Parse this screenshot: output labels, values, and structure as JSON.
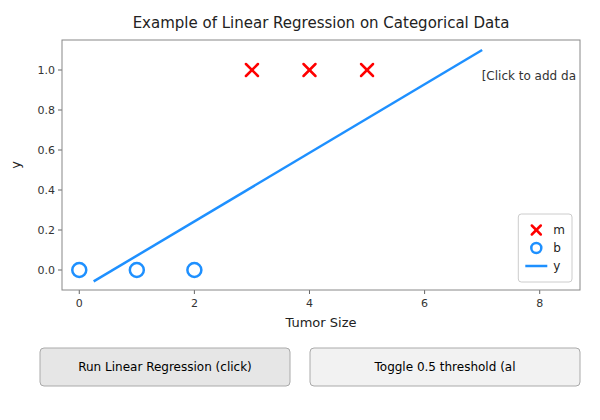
{
  "chart_data": {
    "type": "scatter",
    "title": "Example of Linear Regression on Categorical Data",
    "x_label": "Tumor Size",
    "y_label": "y",
    "xlim": [
      -0.3,
      8.7
    ],
    "ylim": [
      -0.1,
      1.15
    ],
    "xticks": [
      0,
      2,
      4,
      6,
      8
    ],
    "yticks": [
      {
        "value": 0.0,
        "label": "0.0"
      },
      0.2,
      0.4,
      0.6,
      0.8,
      {
        "value": 1.0,
        "label": "1.0"
      }
    ],
    "grid": false,
    "legend": "lower right",
    "series": [
      {
        "name": "m",
        "type": "scatter",
        "marker": "x",
        "color": "#ff0000",
        "x": [
          3.0,
          4.0,
          5.0
        ],
        "values": [
          1.0,
          1.0,
          1.0
        ]
      },
      {
        "name": "b",
        "type": "scatter",
        "marker": "o",
        "color": "#1e90ff",
        "x": [
          0.0,
          1.0,
          2.0
        ],
        "values": [
          0.0,
          0.0,
          0.0
        ]
      },
      {
        "name": "y",
        "type": "line",
        "color": "#1e90ff",
        "x": [
          0.25,
          7.0
        ],
        "values": [
          -0.05714285714285714,
          1.1
        ]
      }
    ],
    "annotation": "[Click to add da",
    "buttons": [
      "Run Linear Regression (click)",
      "Toggle 0.5 threshold (al"
    ]
  }
}
